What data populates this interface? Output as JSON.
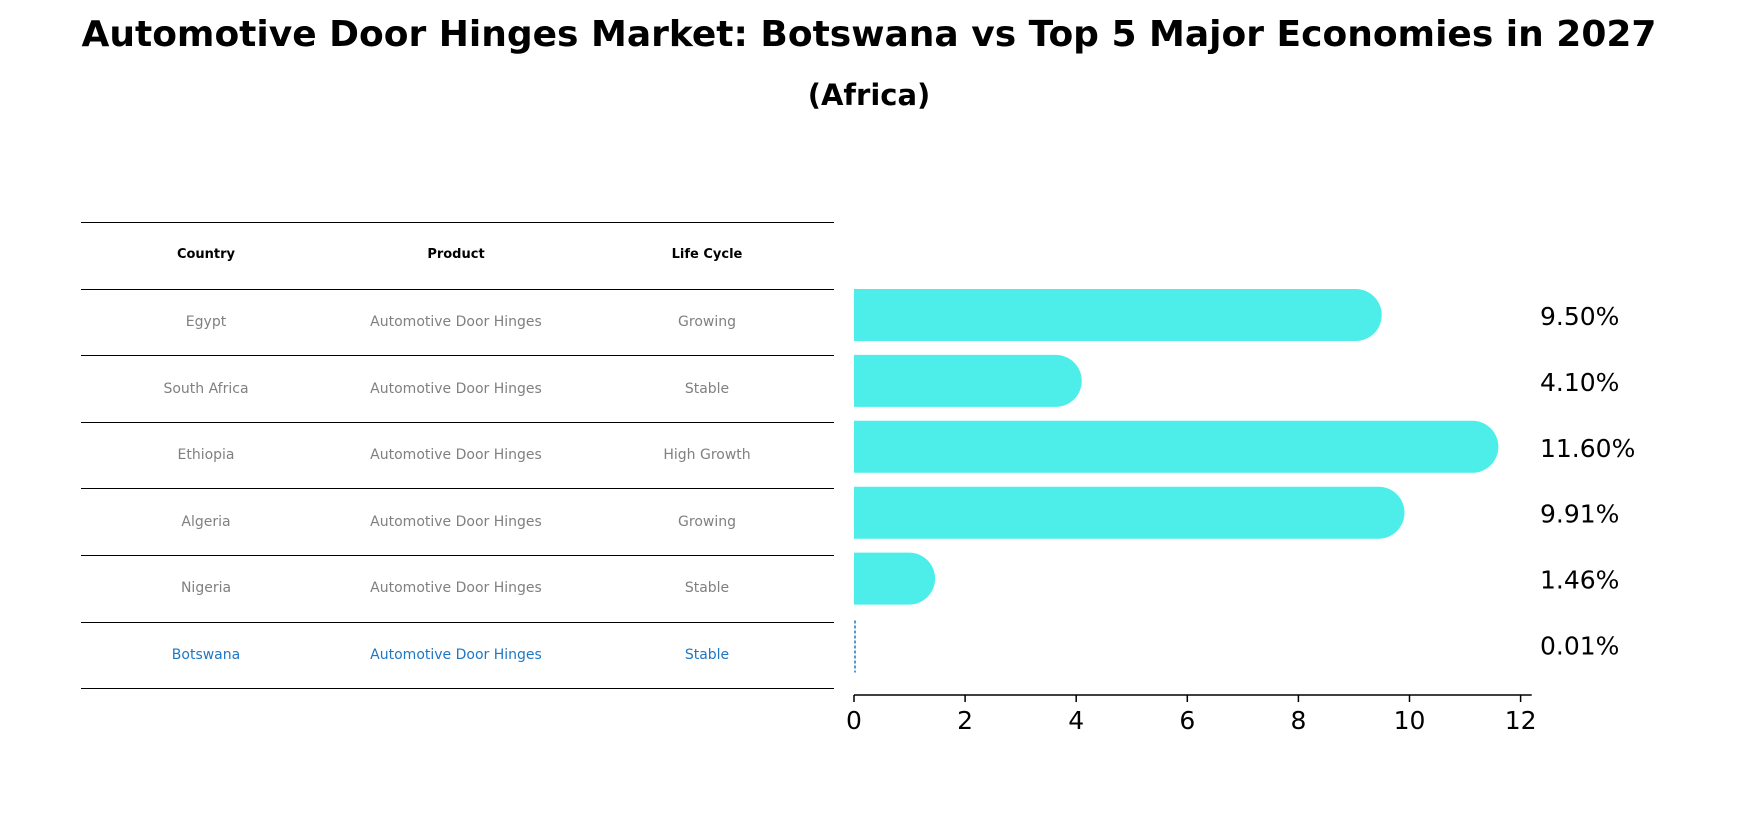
{
  "title": "Automotive Door Hinges Market: Botswana vs Top 5 Major Economies in 2027",
  "subtitle": "(Africa)",
  "colors": {
    "bar": "#4deeea",
    "highlight": "#1f77c4",
    "muted": "#808080"
  },
  "table": {
    "headers": [
      "Country",
      "Product",
      "Life Cycle"
    ],
    "rows": [
      {
        "country": "Egypt",
        "product": "Automotive Door Hinges",
        "life_cycle": "Growing"
      },
      {
        "country": "South Africa",
        "product": "Automotive Door Hinges",
        "life_cycle": "Stable"
      },
      {
        "country": "Ethiopia",
        "product": "Automotive Door Hinges",
        "life_cycle": "High Growth"
      },
      {
        "country": "Algeria",
        "product": "Automotive Door Hinges",
        "life_cycle": "Growing"
      },
      {
        "country": "Nigeria",
        "product": "Automotive Door Hinges",
        "life_cycle": "Stable"
      },
      {
        "country": "Botswana",
        "product": "Automotive Door Hinges",
        "life_cycle": "Stable"
      }
    ]
  },
  "chart_data": {
    "type": "bar",
    "orientation": "horizontal",
    "title": "Automotive Door Hinges Market: Botswana vs Top 5 Major Economies in 2027",
    "subtitle": "(Africa)",
    "categories": [
      "Egypt",
      "South Africa",
      "Ethiopia",
      "Algeria",
      "Nigeria",
      "Botswana"
    ],
    "values": [
      9.5,
      4.1,
      11.6,
      9.91,
      1.46,
      0.01
    ],
    "labels": [
      "9.50%",
      "4.10%",
      "11.60%",
      "9.91%",
      "1.46%",
      "0.01%"
    ],
    "highlight": "Botswana",
    "xlim": [
      0,
      12.2
    ],
    "xticks": [
      0,
      2,
      4,
      6,
      8,
      10,
      12
    ],
    "xlabel": "",
    "ylabel": ""
  }
}
